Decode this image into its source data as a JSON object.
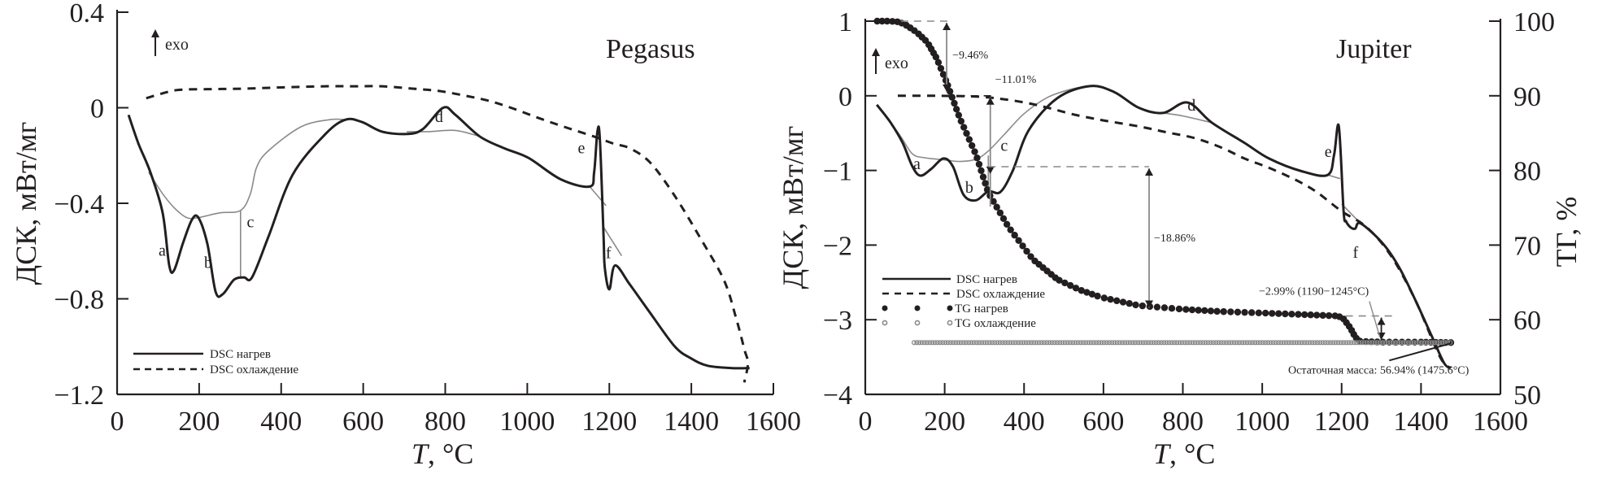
{
  "chart_data": [
    {
      "type": "line",
      "title": "Pegasus",
      "xlabel_italic": "T",
      "xlabel": ", °C",
      "ylabel": "ДСК, мВт/мг",
      "xlim": [
        0,
        1600
      ],
      "ylim": [
        -1.2,
        0.4
      ],
      "x_ticks": [
        0,
        200,
        400,
        600,
        800,
        1000,
        1200,
        1400,
        1600
      ],
      "x_tick_labels": [
        "0",
        "200",
        "400",
        "600",
        "800",
        "1000",
        "1200",
        "1400",
        "1600"
      ],
      "y_ticks": [
        0.4,
        0,
        -0.4,
        -0.8,
        -1.2
      ],
      "y_tick_labels": [
        "0.4",
        "0",
        "−0.4",
        "−0.8",
        "−1.2"
      ],
      "exo_label": "exo",
      "legend": {
        "position": "bottom-left",
        "entries": [
          "DSC нагрев",
          "DSC охлаждение"
        ]
      },
      "series": [
        {
          "name": "DSC нагрев",
          "style": "solid",
          "x": [
            28,
            52,
            81,
            111,
            127,
            139,
            160,
            182,
            198,
            220,
            240,
            258,
            285,
            309,
            329,
            369,
            428,
            508,
            557,
            597,
            646,
            706,
            745,
            795,
            825,
            884,
            944,
            1003,
            1082,
            1152,
            1163,
            1171,
            1177,
            1186,
            1189,
            1200,
            1214,
            1250,
            1300,
            1360,
            1400,
            1440,
            1499,
            1542
          ],
          "y": [
            -0.03,
            -0.15,
            -0.27,
            -0.44,
            -0.66,
            -0.68,
            -0.57,
            -0.47,
            -0.46,
            -0.57,
            -0.77,
            -0.78,
            -0.72,
            -0.71,
            -0.71,
            -0.54,
            -0.28,
            -0.11,
            -0.05,
            -0.06,
            -0.1,
            -0.11,
            -0.09,
            0.0,
            -0.03,
            -0.12,
            -0.17,
            -0.21,
            -0.3,
            -0.33,
            -0.27,
            -0.1,
            -0.13,
            -0.54,
            -0.67,
            -0.76,
            -0.66,
            -0.74,
            -0.86,
            -1.0,
            -1.05,
            -1.08,
            -1.09,
            -1.09
          ]
        },
        {
          "name": "DSC охлаждение",
          "style": "dashed",
          "x": [
            71,
            110,
            151,
            230,
            309,
            400,
            508,
            580,
            646,
            720,
            785,
            850,
            904,
            960,
            1023,
            1090,
            1162,
            1210,
            1250,
            1300,
            1360,
            1420,
            1479,
            1509,
            1529,
            1538,
            1529
          ],
          "y": [
            0.04,
            0.06,
            0.075,
            0.078,
            0.08,
            0.085,
            0.09,
            0.09,
            0.09,
            0.08,
            0.07,
            0.05,
            0.03,
            0.0,
            -0.04,
            -0.08,
            -0.12,
            -0.15,
            -0.17,
            -0.23,
            -0.37,
            -0.54,
            -0.72,
            -0.88,
            -1.01,
            -1.07,
            -1.15
          ]
        }
      ],
      "baselines": [
        {
          "name": "baseline-abc",
          "x": [
            77,
            111,
            140,
            170,
            198,
            250,
            301,
            325,
            340,
            369,
            448,
            518,
            557
          ],
          "y": [
            -0.27,
            -0.36,
            -0.42,
            -0.46,
            -0.46,
            -0.44,
            -0.43,
            -0.36,
            -0.25,
            -0.18,
            -0.08,
            -0.05,
            -0.05
          ]
        },
        {
          "name": "baseline-b-c-divider",
          "x": [
            301,
            301
          ],
          "y": [
            -0.43,
            -0.71
          ]
        },
        {
          "name": "baseline-d",
          "x": [
            706,
            760,
            825,
            884
          ],
          "y": [
            -0.1,
            -0.1,
            -0.095,
            -0.12
          ]
        },
        {
          "name": "baseline-e",
          "x": [
            1152,
            1192
          ],
          "y": [
            -0.33,
            -0.41
          ]
        },
        {
          "name": "baseline-f",
          "x": [
            1186,
            1230
          ],
          "y": [
            -0.5,
            -0.62
          ]
        }
      ],
      "peak_labels": [
        {
          "label": "a",
          "x": 110,
          "y": -0.62
        },
        {
          "label": "b",
          "x": 222,
          "y": -0.67
        },
        {
          "label": "c",
          "x": 325,
          "y": -0.5
        },
        {
          "label": "d",
          "x": 785,
          "y": -0.06
        },
        {
          "label": "e",
          "x": 1132,
          "y": -0.19
        },
        {
          "label": "f",
          "x": 1198,
          "y": -0.63
        }
      ]
    },
    {
      "type": "line",
      "title": "Jupiter",
      "xlabel_italic": "T",
      "xlabel": ", °C",
      "ylabel": "ДСК, мВт/мг",
      "y2label": "ТГ, %",
      "xlim": [
        0,
        1600
      ],
      "ylim": [
        -4,
        1
      ],
      "y2lim": [
        50,
        100
      ],
      "x_ticks": [
        0,
        200,
        400,
        600,
        800,
        1000,
        1200,
        1400,
        1600
      ],
      "x_tick_labels": [
        "0",
        "200",
        "400",
        "600",
        "800",
        "1000",
        "1200",
        "1400",
        "1600"
      ],
      "y_ticks": [
        1,
        0,
        -1,
        -2,
        -3,
        -4
      ],
      "y_tick_labels": [
        "1",
        "0",
        "−1",
        "−2",
        "−3",
        "−4"
      ],
      "y2_ticks": [
        100,
        90,
        80,
        70,
        60,
        50
      ],
      "y2_tick_labels": [
        "100",
        "90",
        "80",
        "70",
        "60",
        "50"
      ],
      "exo_label": "exo",
      "legend": {
        "position": "bottom-left",
        "entries": [
          "DSC нагрев",
          "DSC охлаждение",
          "TG нагрев",
          "TG охлаждение"
        ]
      },
      "series": [
        {
          "name": "DSC нагрев",
          "style": "solid",
          "axis": "left",
          "x": [
            29,
            64,
            94,
            119,
            139,
            166,
            197,
            221,
            248,
            279,
            310,
            340,
            371,
            412,
            484,
            566,
            627,
            689,
            750,
            812,
            873,
            955,
            1017,
            1099,
            1165,
            1181,
            1193,
            1205,
            1211,
            1222,
            1234,
            1248,
            1304,
            1345,
            1386,
            1427,
            1458,
            1475
          ],
          "y": [
            -0.12,
            -0.36,
            -0.63,
            -0.95,
            -1.07,
            -0.98,
            -0.84,
            -0.95,
            -1.33,
            -1.4,
            -1.28,
            -1.29,
            -1.01,
            -0.46,
            -0.03,
            0.13,
            0.05,
            -0.16,
            -0.23,
            -0.09,
            -0.36,
            -0.63,
            -0.84,
            -1.01,
            -1.06,
            -0.79,
            -0.41,
            -1.55,
            -1.68,
            -1.76,
            -1.78,
            -1.71,
            -1.98,
            -2.3,
            -2.74,
            -3.22,
            -3.58,
            -3.65
          ]
        },
        {
          "name": "DSC охлаждение",
          "style": "dashed",
          "axis": "left",
          "x": [
            82,
            176,
            279,
            340,
            402,
            460,
            525,
            600,
            689,
            760,
            832,
            900,
            955,
            1010,
            1058,
            1100,
            1140,
            1201,
            1263,
            1324,
            1386,
            1447,
            1475
          ],
          "y": [
            0.0,
            0.0,
            -0.01,
            -0.04,
            -0.09,
            -0.16,
            -0.25,
            -0.33,
            -0.41,
            -0.49,
            -0.57,
            -0.7,
            -0.84,
            -0.95,
            -1.06,
            -1.17,
            -1.3,
            -1.55,
            -1.76,
            -2.14,
            -2.74,
            -3.49,
            -3.65
          ]
        },
        {
          "name": "TG нагрев",
          "style": "filled-dots",
          "axis": "right",
          "x": [
            30,
            60,
            85,
            105,
            130,
            156,
            180,
            205,
            238,
            279,
            310,
            361,
            422,
            484,
            540,
            594,
            689,
            800,
            894,
            1000,
            1099,
            1191,
            1205,
            1222,
            1235,
            1247,
            1304,
            1400,
            1475
          ],
          "y": [
            100,
            100,
            99.9,
            99.4,
            98.5,
            97.2,
            95.0,
            91.8,
            87.0,
            82.1,
            77.0,
            72.4,
            68.1,
            65.4,
            64.0,
            63.0,
            61.9,
            61.4,
            61.1,
            60.9,
            60.7,
            60.5,
            60.1,
            58.9,
            57.6,
            57.1,
            57.0,
            57.0,
            56.94
          ]
        },
        {
          "name": "TG охлаждение",
          "style": "open-dots",
          "axis": "right",
          "x": [
            123,
            400,
            800,
            1200,
            1475
          ],
          "y": [
            56.94,
            56.94,
            56.94,
            56.94,
            56.94
          ]
        }
      ],
      "baselines": [
        {
          "name": "baseline-abc",
          "x": [
            64,
            90,
            119,
            150,
            200,
            240,
            279,
            310,
            350,
            400,
            460,
            520,
            566
          ],
          "y": [
            -0.36,
            -0.55,
            -0.78,
            -0.83,
            -0.86,
            -0.88,
            -0.85,
            -0.74,
            -0.52,
            -0.24,
            -0.02,
            0.09,
            0.13
          ]
        },
        {
          "name": "baseline-b-divider",
          "x": [
            310,
            310
          ],
          "y": [
            -0.8,
            -1.28
          ]
        },
        {
          "name": "baseline-d",
          "x": [
            750,
            800,
            873
          ],
          "y": [
            -0.23,
            -0.27,
            -0.36
          ]
        },
        {
          "name": "baseline-e",
          "x": [
            1165,
            1196
          ],
          "y": [
            -1.06,
            -1.11
          ]
        },
        {
          "name": "baseline-f",
          "x": [
            1200,
            1248
          ],
          "y": [
            -1.45,
            -1.71
          ]
        }
      ],
      "peak_labels": [
        {
          "label": "a",
          "x": 130,
          "y": -0.98
        },
        {
          "label": "b",
          "x": 262,
          "y": -1.3
        },
        {
          "label": "c",
          "x": 350,
          "y": -0.74
        },
        {
          "label": "d",
          "x": 822,
          "y": -0.2
        },
        {
          "label": "e",
          "x": 1166,
          "y": -0.82
        },
        {
          "label": "f",
          "x": 1235,
          "y": -2.17
        }
      ],
      "annotations": [
        {
          "text": "−9.46%",
          "x1": 205,
          "tg_from": 100,
          "tg_to": 90.54
        },
        {
          "text": "−11.01%",
          "x1": 315,
          "tg_from": 90,
          "tg_to": 79.53
        },
        {
          "text": "−18.86%",
          "x1": 715,
          "tg_from": 80.5,
          "tg_to": 61.6
        },
        {
          "text": "−2.99% (1190−1245°C)",
          "x1": 1300,
          "tg_from": 60.5,
          "tg_to": 57.3
        },
        {
          "text": "Остаточная масса: 56.94% (1475.6°C)",
          "x1": 1475,
          "tg_to": 56.94
        }
      ]
    }
  ]
}
